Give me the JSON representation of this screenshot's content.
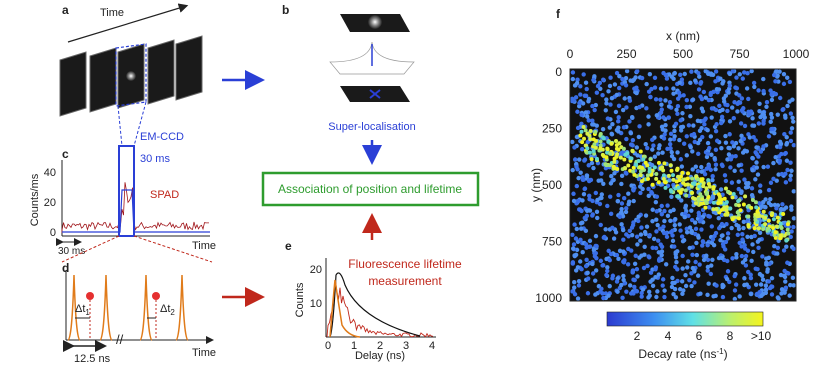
{
  "panels": {
    "a": {
      "label": "a",
      "time": "Time",
      "camera": "EM-CCD",
      "interval": "30 ms"
    },
    "b": {
      "label": "b",
      "caption": "Super-localisation"
    },
    "center": {
      "text": "Association of position and lifetime"
    },
    "c": {
      "label": "c",
      "ylabel": "Counts/ms",
      "yticks": [
        "0",
        "20",
        "40"
      ],
      "trace": "SPAD",
      "xlabel": "Time",
      "scale": "30 ms"
    },
    "d": {
      "label": "d",
      "delta": "Δt",
      "sub1": "1",
      "sub2": "2",
      "period": "12.5 ns",
      "xlabel": "Time"
    },
    "e": {
      "label": "e",
      "ylabel": "Counts",
      "yticks": [
        "10",
        "20"
      ],
      "xticks": [
        "0",
        "1",
        "2",
        "3",
        "4"
      ],
      "xlabel": "Delay (ns)",
      "caption_line1": "Fluorescence lifetime",
      "caption_line2": "measurement"
    },
    "f": {
      "label": "f",
      "xlabel": "x (nm)",
      "xticks": [
        "0",
        "250",
        "500",
        "750",
        "1000"
      ],
      "ylabel": "y (nm)",
      "yticks": [
        "0",
        "250",
        "500",
        "750",
        "1000"
      ],
      "cticks": [
        "2",
        "4",
        "6",
        "8",
        ">10"
      ],
      "clabel_start": "Decay rate (ns",
      "clabel_sup": "-1",
      "clabel_end": ")"
    }
  }
}
